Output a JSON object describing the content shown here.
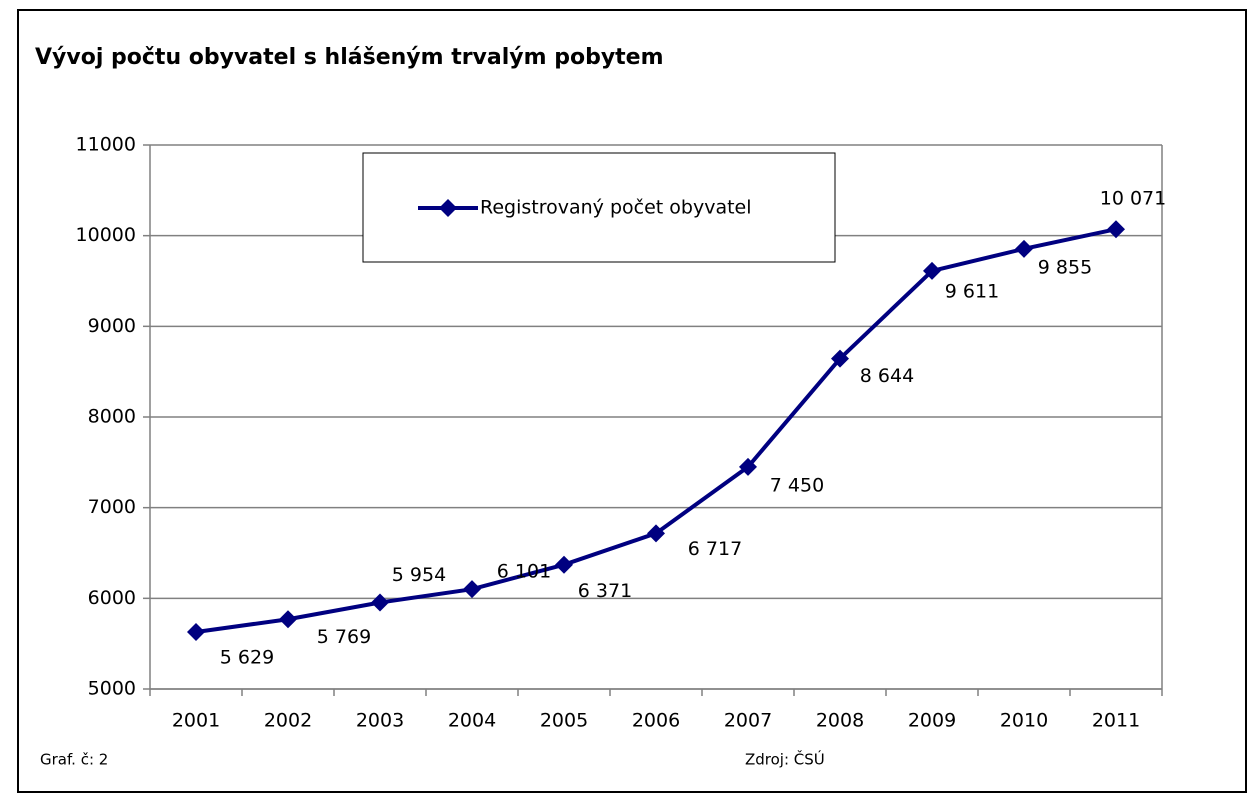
{
  "chart_data": {
    "type": "line",
    "title": "Vývoj počtu obyvatel s hlášeným trvalým pobytem",
    "categories": [
      "2001",
      "2002",
      "2003",
      "2004",
      "2005",
      "2006",
      "2007",
      "2008",
      "2009",
      "2010",
      "2011"
    ],
    "series": [
      {
        "name": "Registrovaný počet obyvatel",
        "color": "#000080",
        "values": [
          5629,
          5769,
          5954,
          6101,
          6371,
          6717,
          7450,
          8644,
          9611,
          9855,
          10071
        ],
        "value_labels": [
          "5 629",
          "5 769",
          "5 954",
          "6 101",
          "6 371",
          "6 717",
          "7 450",
          "8 644",
          "9 611",
          "9 855",
          "10 071"
        ]
      }
    ],
    "ylim": [
      5000,
      11000
    ],
    "yticks": [
      5000,
      6000,
      7000,
      8000,
      9000,
      10000,
      11000
    ],
    "grid": true,
    "legend": "top",
    "footnote": "Graf. č: 2",
    "source": "Zdroj: ČSÚ"
  }
}
